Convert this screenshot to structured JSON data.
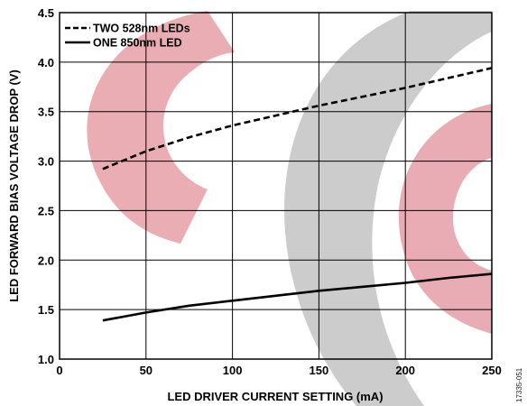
{
  "chart_data": {
    "type": "line",
    "xlabel": "LED DRIVER CURRENT SETTING (mA)",
    "ylabel": "LED FORWARD BIAS VOLTAGE DROP (V)",
    "xlim": [
      0,
      250
    ],
    "ylim": [
      1.0,
      4.5
    ],
    "x_ticks": [
      0,
      50,
      100,
      150,
      200,
      250
    ],
    "y_ticks": [
      1.0,
      1.5,
      2.0,
      2.5,
      3.0,
      3.5,
      4.0,
      4.5
    ],
    "x_tick_labels": [
      "0",
      "50",
      "100",
      "150",
      "200",
      "250"
    ],
    "y_tick_labels": [
      "1.0",
      "1.5",
      "2.0",
      "2.5",
      "3.0",
      "3.5",
      "4.0",
      "4.5"
    ],
    "grid": true,
    "legend_position": "top-left",
    "series": [
      {
        "name": "TWO 528nm LEDs",
        "style": "dashed",
        "color": "#000000",
        "x": [
          25,
          50,
          75,
          100,
          125,
          150,
          175,
          200,
          225,
          250
        ],
        "y": [
          2.92,
          3.1,
          3.24,
          3.36,
          3.46,
          3.56,
          3.65,
          3.74,
          3.84,
          3.94
        ]
      },
      {
        "name": "ONE 850nm LED",
        "style": "solid",
        "color": "#000000",
        "x": [
          25,
          50,
          75,
          100,
          125,
          150,
          175,
          200,
          225,
          250
        ],
        "y": [
          1.39,
          1.47,
          1.54,
          1.59,
          1.64,
          1.69,
          1.73,
          1.77,
          1.82,
          1.86
        ]
      }
    ],
    "figure_id": "17335-051"
  },
  "watermark": {
    "colors": [
      "#e8a6ae",
      "#c8c8c8"
    ]
  }
}
